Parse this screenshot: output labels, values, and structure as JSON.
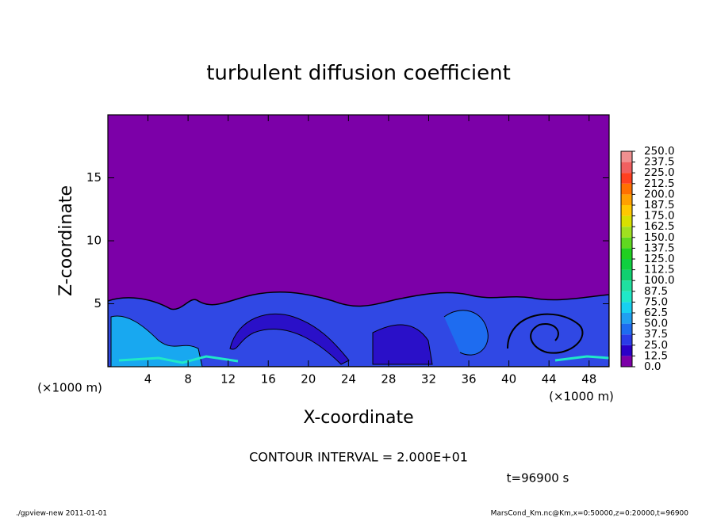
{
  "chart_data": {
    "type": "contour",
    "title": "turbulent diffusion coefficient",
    "xlabel": "X-coordinate",
    "ylabel": "Z-coordinate",
    "x_unit": "(×1000 m)",
    "y_unit": "(×1000 m)",
    "xlim": [
      0,
      50
    ],
    "xticks": [
      4,
      8,
      12,
      16,
      20,
      24,
      28,
      32,
      36,
      40,
      44,
      48
    ],
    "ylim": [
      0,
      20
    ],
    "yticks": [
      5,
      10,
      15
    ],
    "contour_interval": "CONTOUR INTERVAL = 2.000E+01",
    "time_label": "t=96900 s",
    "footer_left": "./gpview-new  2011-01-01",
    "footer_right": "MarsCond_Km.nc@Km,x=0:50000,z=0:20000,t=96900",
    "colorbar": {
      "levels": [
        {
          "value": 0,
          "label": "0.0"
        },
        {
          "value": 12.5,
          "label": "12.5"
        },
        {
          "value": 25,
          "label": "25.0"
        },
        {
          "value": 37.5,
          "label": "37.5"
        },
        {
          "value": 50,
          "label": "50.0"
        },
        {
          "value": 62.5,
          "label": "62.5"
        },
        {
          "value": 75,
          "label": "75.0"
        },
        {
          "value": 87.5,
          "label": "87.5"
        },
        {
          "value": 100,
          "label": "100.0"
        },
        {
          "value": 112.5,
          "label": "112.5"
        },
        {
          "value": 125,
          "label": "125.0"
        },
        {
          "value": 137.5,
          "label": "137.5"
        },
        {
          "value": 150,
          "label": "150.0"
        },
        {
          "value": 162.5,
          "label": "162.5"
        },
        {
          "value": 175,
          "label": "175.0"
        },
        {
          "value": 187.5,
          "label": "187.5"
        },
        {
          "value": 200,
          "label": "200.0"
        },
        {
          "value": 212.5,
          "label": "212.5"
        },
        {
          "value": 225,
          "label": "225.0"
        },
        {
          "value": 237.5,
          "label": "237.5"
        },
        {
          "value": 250,
          "label": "250.0"
        }
      ],
      "colors": [
        "#7c00a8",
        "#2a00c8",
        "#2a3ce8",
        "#1e6cf0",
        "#20a0f0",
        "#18d0f0",
        "#20e8c8",
        "#20e0a0",
        "#10d070",
        "#10d040",
        "#20d020",
        "#60d820",
        "#a0e020",
        "#d8e000",
        "#ffc800",
        "#ffa000",
        "#ff7000",
        "#ff4020",
        "#f06060",
        "#f09090"
      ]
    }
  }
}
